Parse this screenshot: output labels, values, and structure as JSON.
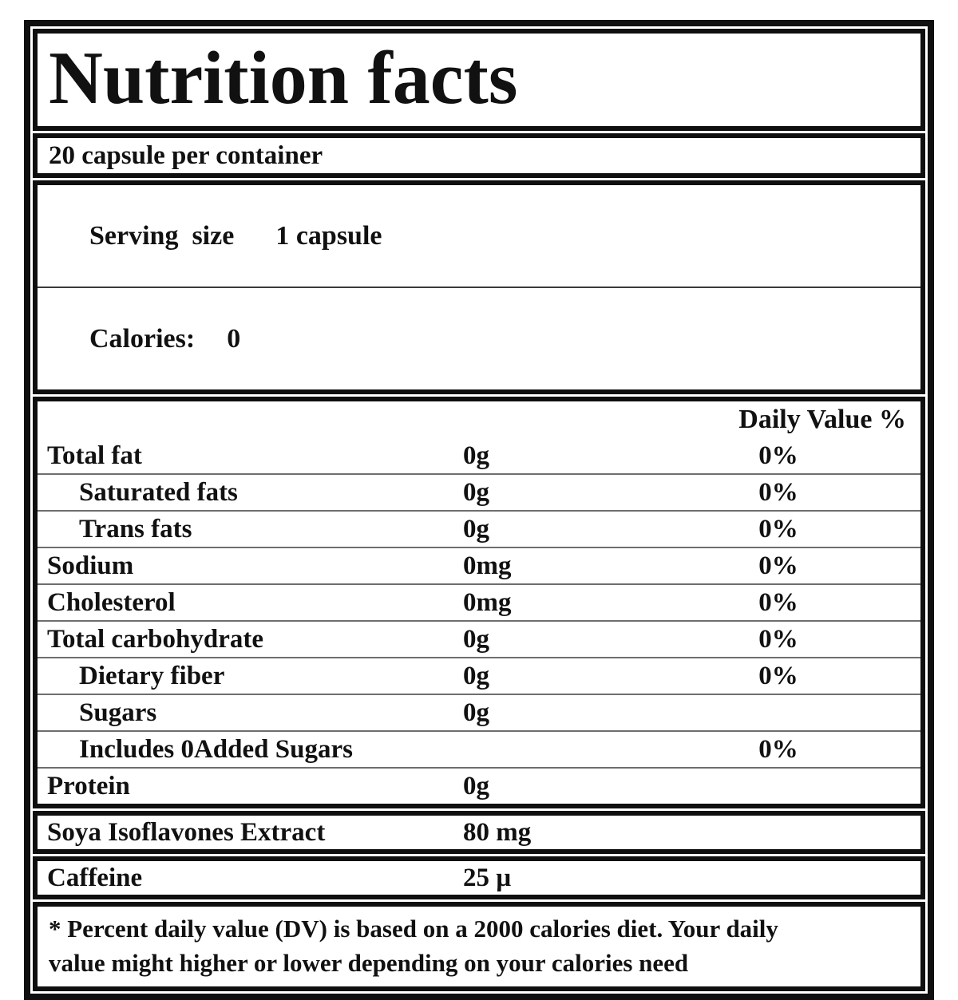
{
  "label": {
    "title": "Nutrition facts",
    "container_line": "20 capsule per container",
    "serving": {
      "label": "Serving  size",
      "value": "1 capsule"
    },
    "calories": {
      "label": "Calories:",
      "value": "0"
    },
    "table": {
      "dv_header": "Daily Value %",
      "rows": [
        {
          "name": "Total fat",
          "amount": "0g",
          "dv": "0%",
          "indent": false
        },
        {
          "name": "Saturated fats",
          "amount": "0g",
          "dv": "0%",
          "indent": true
        },
        {
          "name": "Trans fats",
          "amount": "0g",
          "dv": "0%",
          "indent": true
        },
        {
          "name": "Sodium",
          "amount": "0mg",
          "dv": "0%",
          "indent": false
        },
        {
          "name": "Cholesterol",
          "amount": "0mg",
          "dv": "0%",
          "indent": false
        },
        {
          "name": "Total carbohydrate",
          "amount": "0g",
          "dv": "0%",
          "indent": false
        },
        {
          "name": "Dietary fiber",
          "amount": "0g",
          "dv": "0%",
          "indent": true
        },
        {
          "name": "Sugars",
          "amount": "0g",
          "dv": "",
          "indent": true
        },
        {
          "name": "Includes 0Added Sugars",
          "amount": "",
          "dv": "0%",
          "indent": true
        },
        {
          "name": "Protein",
          "amount": "0g",
          "dv": "",
          "indent": false
        }
      ]
    },
    "extras": [
      {
        "name": "Soya Isoflavones Extract",
        "amount": "80 mg"
      },
      {
        "name": "Caffeine",
        "amount": "25 µ"
      }
    ],
    "footnote_lines": [
      "* Percent daily value (DV) is based on a 2000 calories diet. Your daily",
      "value might higher or lower depending on your calories need"
    ],
    "colors": {
      "border": "#0f0f0f",
      "text": "#111111",
      "row_separator": "#6e6e6e",
      "background": "#ffffff"
    }
  }
}
